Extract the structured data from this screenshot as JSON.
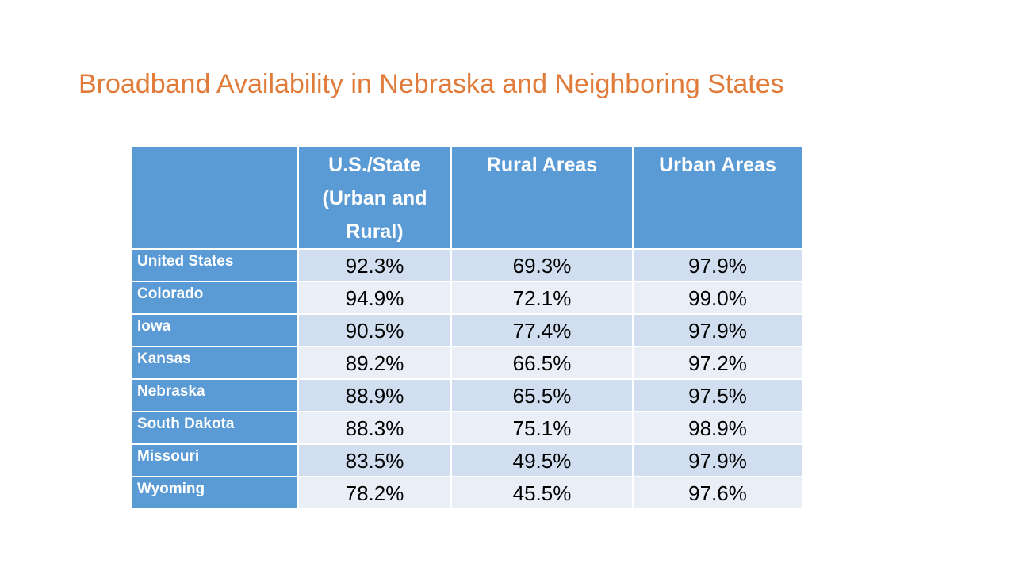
{
  "title": "Broadband Availability in Nebraska and Neighboring States",
  "colors": {
    "title": "#E07B39",
    "header_bg": "#5B9BD5",
    "row_band_1": "#D0DEEF",
    "row_band_2": "#E9EEF7"
  },
  "table": {
    "headers": [
      "",
      "U.S./State (Urban and Rural)",
      "Rural Areas",
      "Urban Areas"
    ],
    "rows": [
      {
        "label": "United States",
        "values": [
          "92.3%",
          "69.3%",
          "97.9%"
        ]
      },
      {
        "label": "Colorado",
        "values": [
          "94.9%",
          "72.1%",
          "99.0%"
        ]
      },
      {
        "label": "Iowa",
        "values": [
          "90.5%",
          "77.4%",
          "97.9%"
        ]
      },
      {
        "label": "Kansas",
        "values": [
          "89.2%",
          "66.5%",
          "97.2%"
        ]
      },
      {
        "label": "Nebraska",
        "values": [
          "88.9%",
          "65.5%",
          "97.5%"
        ]
      },
      {
        "label": "South Dakota",
        "values": [
          "88.3%",
          "75.1%",
          "98.9%"
        ]
      },
      {
        "label": "Missouri",
        "values": [
          "83.5%",
          "49.5%",
          "97.9%"
        ]
      },
      {
        "label": "Wyoming",
        "values": [
          "78.2%",
          "45.5%",
          "97.6%"
        ]
      }
    ]
  }
}
